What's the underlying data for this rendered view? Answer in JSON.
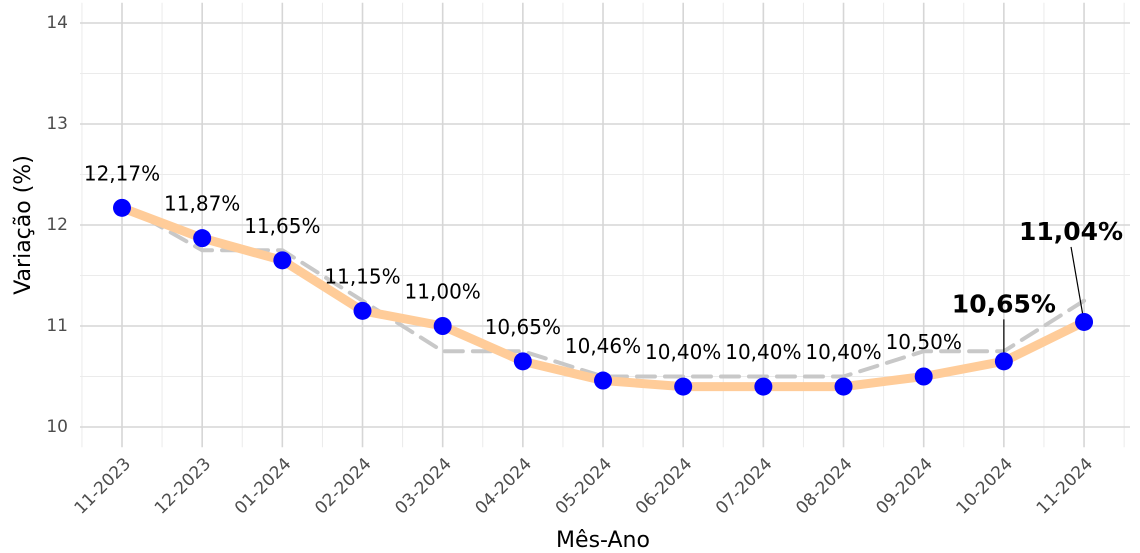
{
  "chart_data": {
    "type": "line",
    "x_label": "Mês-Ano",
    "y_label": "Variação (%)",
    "categories": [
      "11-2023",
      "12-2023",
      "01-2024",
      "02-2024",
      "03-2024",
      "04-2024",
      "05-2024",
      "06-2024",
      "07-2024",
      "08-2024",
      "09-2024",
      "10-2024",
      "11-2024"
    ],
    "series": [
      {
        "color": "#ffcc99",
        "point_color": "#0000ff",
        "values": [
          12.17,
          11.87,
          11.65,
          11.15,
          11.0,
          10.65,
          10.46,
          10.4,
          10.4,
          10.4,
          10.5,
          10.65,
          11.04
        ],
        "value_labels": [
          "12,17%",
          "11,87%",
          "11,65%",
          "11,15%",
          "11,00%",
          "10,65%",
          "10,46%",
          "10,40%",
          "10,40%",
          "10,40%",
          "10,50%",
          "10,65%",
          "11,04%"
        ],
        "highlight": [
          11,
          12
        ]
      },
      {
        "color": "#c8c8c8",
        "dashed": true,
        "values": [
          12.2,
          11.75,
          11.75,
          11.25,
          10.75,
          10.75,
          10.5,
          10.5,
          10.5,
          10.5,
          10.75,
          10.75,
          11.25
        ]
      }
    ],
    "ylim": [
      9.8,
      14.2
    ],
    "yticks": [
      10,
      11,
      12,
      13,
      14
    ],
    "grid": true
  }
}
